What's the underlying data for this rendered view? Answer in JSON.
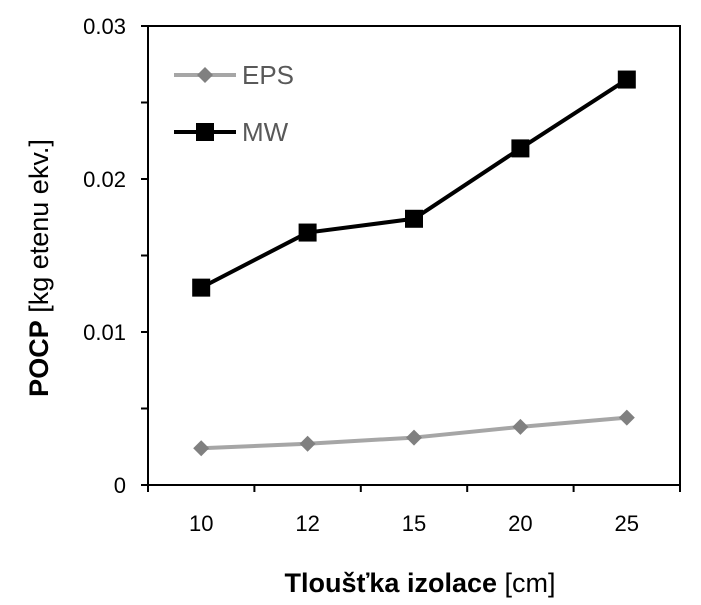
{
  "chart_data": {
    "type": "line",
    "categories": [
      "10",
      "12",
      "15",
      "20",
      "25"
    ],
    "series": [
      {
        "name": "EPS",
        "values": [
          0.0024,
          0.0027,
          0.0031,
          0.0038,
          0.0044
        ],
        "color": "#a6a6a6",
        "marker_color": "#808080",
        "marker": "diamond"
      },
      {
        "name": "MW",
        "values": [
          0.0129,
          0.0165,
          0.0174,
          0.022,
          0.0265
        ],
        "color": "#000000",
        "marker_color": "#000000",
        "marker": "square"
      }
    ],
    "ylim": [
      0,
      0.03
    ],
    "y_ticks": [
      0,
      0.005,
      0.01,
      0.015,
      0.02,
      0.025,
      0.03
    ],
    "y_tick_labels": [
      "0",
      "",
      "0.01",
      "",
      "0.02",
      "",
      "0.03"
    ],
    "xlabel": {
      "bold": "Tloušťka izolace",
      "rest": " [cm]"
    },
    "ylabel": {
      "bold": "POCP",
      "rest": " [kg etenu ekv.]"
    },
    "legend_position": "top-left",
    "grid": false
  }
}
